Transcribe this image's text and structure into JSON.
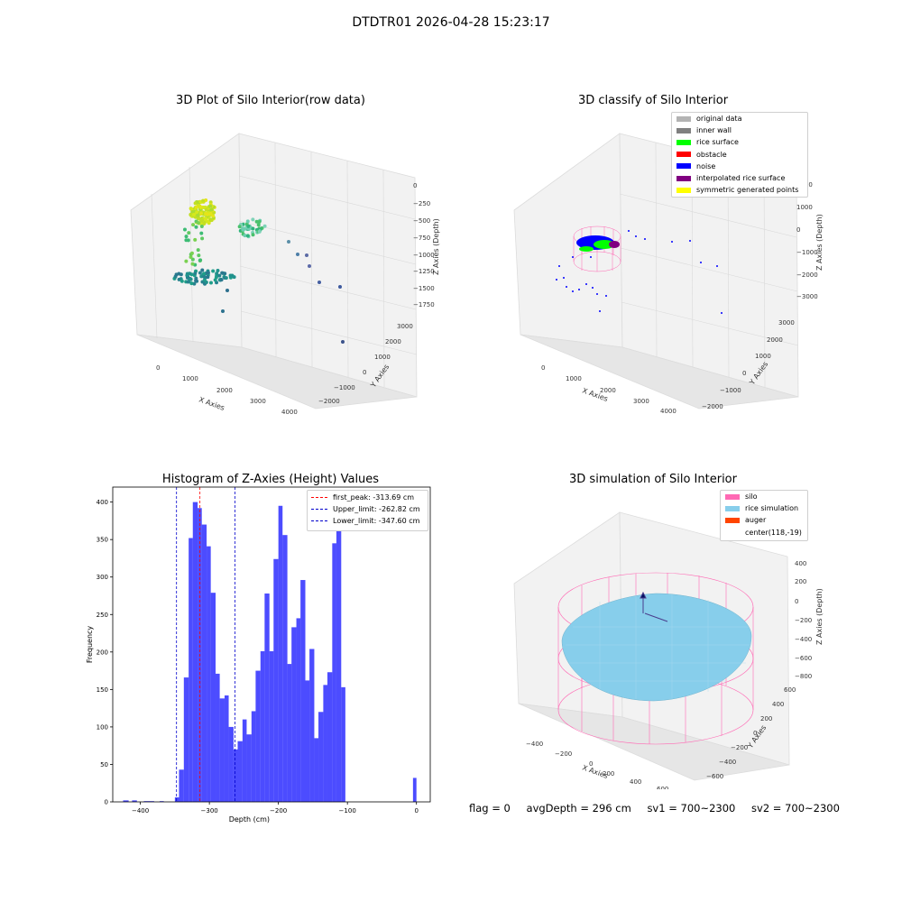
{
  "suptitle": "DTDTR01 2026-04-28 15:23:17",
  "panels": {
    "raw": {
      "title": "3D Plot of Silo Interior(row data)",
      "xlabel": "X Axies",
      "ylabel": "Y Axies",
      "zlabel": "Z Axies (Depth)",
      "xticks": [
        "0",
        "1000",
        "2000",
        "3000",
        "4000"
      ],
      "yticks": [
        "−2000",
        "−1000",
        "0",
        "1000",
        "2000",
        "3000"
      ],
      "zticks": [
        "0",
        "−250",
        "−500",
        "−750",
        "−1000",
        "−1250",
        "−1500",
        "−1750"
      ]
    },
    "classify": {
      "title": "3D classify of Silo Interior",
      "xlabel": "X Axies",
      "ylabel": "Y Axies",
      "zlabel": "Z Axies (Depth)",
      "xticks": [
        "0",
        "1000",
        "2000",
        "3000",
        "4000"
      ],
      "yticks": [
        "−2000",
        "−1000",
        "0",
        "1000",
        "2000",
        "3000"
      ],
      "zticks": [
        "2000",
        "1000",
        "0",
        "−1000",
        "−2000",
        "−3000"
      ],
      "legend": [
        {
          "label": "original data",
          "color": "#b3b3b3"
        },
        {
          "label": "inner wall",
          "color": "#808080"
        },
        {
          "label": "rice surface",
          "color": "#00ff00"
        },
        {
          "label": "obstacle",
          "color": "#ff0000"
        },
        {
          "label": "noise",
          "color": "#0000ff"
        },
        {
          "label": "interpolated rice surface",
          "color": "#800080"
        },
        {
          "label": "symmetric generated points",
          "color": "#ffff00"
        }
      ]
    },
    "simulation": {
      "title": "3D simulation of Silo Interior",
      "xlabel": "X Axies",
      "ylabel": "Y Axies",
      "zlabel": "Z Axies (Depth)",
      "xticks": [
        "−400",
        "−200",
        "0",
        "200",
        "400",
        "600"
      ],
      "yticks": [
        "−600",
        "−400",
        "−200",
        "0",
        "200",
        "400",
        "600"
      ],
      "zticks": [
        "400",
        "200",
        "0",
        "−200",
        "−400",
        "−600",
        "−800"
      ],
      "legend": [
        {
          "label": "silo",
          "color": "#ff69b4"
        },
        {
          "label": "rice simulation",
          "color": "#87ceeb"
        },
        {
          "label": "auger",
          "color": "#ff4500"
        },
        {
          "label": "center(118,-19)",
          "color": ""
        }
      ]
    }
  },
  "chart_data": [
    {
      "type": "bar",
      "title": "Histogram of Z-Axies (Height) Values",
      "xlabel": "Depth (cm)",
      "ylabel": "Frequency",
      "xlim": [
        -440,
        20
      ],
      "ylim": [
        0,
        420
      ],
      "xticks": [
        -400,
        -300,
        -200,
        -100,
        0
      ],
      "yticks": [
        0,
        50,
        100,
        150,
        200,
        250,
        300,
        350,
        400
      ],
      "bar_color": "#0000ff",
      "bins": [
        {
          "x0": -425,
          "x1": -417,
          "v": 2
        },
        {
          "x0": -412,
          "x1": -405,
          "v": 2
        },
        {
          "x0": -395,
          "x1": -380,
          "v": 1
        },
        {
          "x0": -372,
          "x1": -366,
          "v": 1
        },
        {
          "x0": -350,
          "x1": -344,
          "v": 6
        },
        {
          "x0": -344,
          "x1": -337,
          "v": 43
        },
        {
          "x0": -337,
          "x1": -330,
          "v": 166
        },
        {
          "x0": -330,
          "x1": -324,
          "v": 352
        },
        {
          "x0": -324,
          "x1": -317,
          "v": 400
        },
        {
          "x0": -317,
          "x1": -311,
          "v": 392
        },
        {
          "x0": -311,
          "x1": -304,
          "v": 370
        },
        {
          "x0": -304,
          "x1": -298,
          "v": 341
        },
        {
          "x0": -298,
          "x1": -291,
          "v": 279
        },
        {
          "x0": -291,
          "x1": -285,
          "v": 171
        },
        {
          "x0": -285,
          "x1": -278,
          "v": 138
        },
        {
          "x0": -278,
          "x1": -272,
          "v": 142
        },
        {
          "x0": -272,
          "x1": -265,
          "v": 100
        },
        {
          "x0": -265,
          "x1": -259,
          "v": 70
        },
        {
          "x0": -259,
          "x1": -252,
          "v": 81
        },
        {
          "x0": -252,
          "x1": -246,
          "v": 110
        },
        {
          "x0": -246,
          "x1": -239,
          "v": 90
        },
        {
          "x0": -239,
          "x1": -233,
          "v": 121
        },
        {
          "x0": -233,
          "x1": -226,
          "v": 175
        },
        {
          "x0": -226,
          "x1": -220,
          "v": 201
        },
        {
          "x0": -220,
          "x1": -213,
          "v": 278
        },
        {
          "x0": -213,
          "x1": -207,
          "v": 201
        },
        {
          "x0": -207,
          "x1": -200,
          "v": 324
        },
        {
          "x0": -200,
          "x1": -194,
          "v": 395
        },
        {
          "x0": -194,
          "x1": -187,
          "v": 356
        },
        {
          "x0": -187,
          "x1": -181,
          "v": 184
        },
        {
          "x0": -181,
          "x1": -174,
          "v": 233
        },
        {
          "x0": -174,
          "x1": -168,
          "v": 245
        },
        {
          "x0": -168,
          "x1": -161,
          "v": 296
        },
        {
          "x0": -161,
          "x1": -155,
          "v": 162
        },
        {
          "x0": -155,
          "x1": -148,
          "v": 204
        },
        {
          "x0": -148,
          "x1": -142,
          "v": 85
        },
        {
          "x0": -142,
          "x1": -135,
          "v": 120
        },
        {
          "x0": -135,
          "x1": -129,
          "v": 156
        },
        {
          "x0": -129,
          "x1": -122,
          "v": 173
        },
        {
          "x0": -122,
          "x1": -116,
          "v": 345
        },
        {
          "x0": -116,
          "x1": -109,
          "v": 400
        },
        {
          "x0": -109,
          "x1": -103,
          "v": 153
        },
        {
          "x0": -5,
          "x1": 0,
          "v": 32
        }
      ],
      "vlines": [
        {
          "x": -313.69,
          "color": "#ff0000",
          "label": "first_peak: -313.69 cm"
        },
        {
          "x": -262.82,
          "color": "#0000cc",
          "label": "Upper_limit: -262.82 cm"
        },
        {
          "x": -347.6,
          "color": "#0000cc",
          "label": "Lower_limit: -347.60 cm"
        }
      ],
      "legend_position": "top-right"
    }
  ],
  "status": {
    "flag": "flag = 0",
    "avg_depth": "avgDepth = 296 cm",
    "sv1": "sv1 = 700~2300",
    "sv2": "sv2 = 700~2300"
  }
}
